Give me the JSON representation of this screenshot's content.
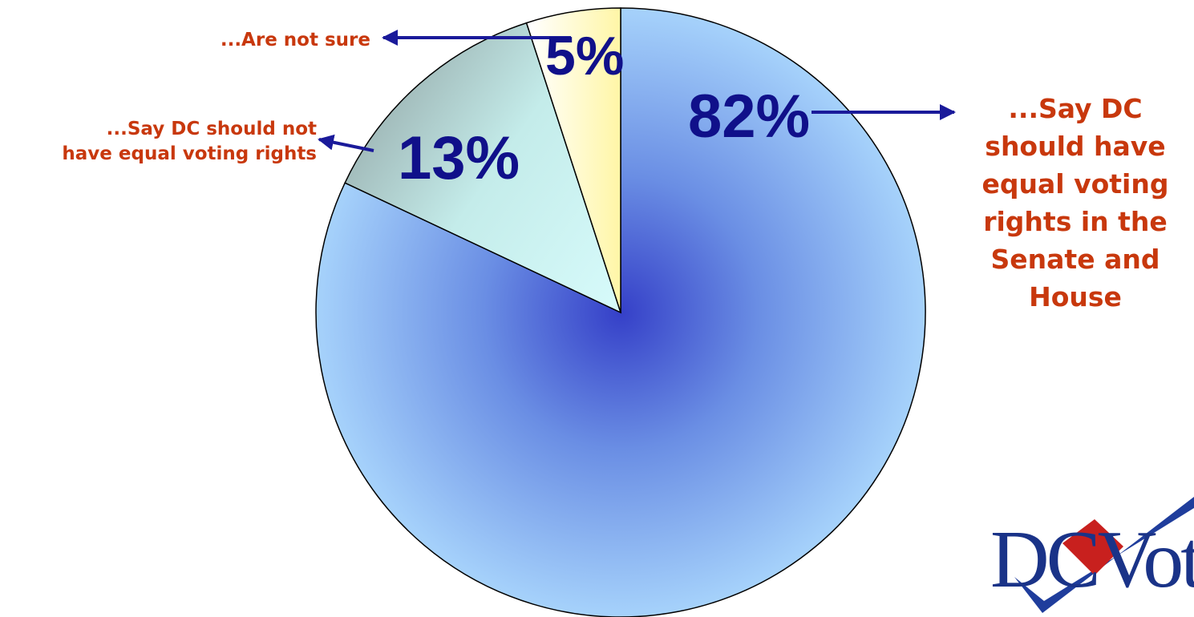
{
  "chart_data": {
    "type": "pie",
    "title": "",
    "slices": [
      {
        "label": "...Say DC should have equal voting rights in the Senate and House",
        "value": 82,
        "value_label": "82%",
        "color": "#4055cf"
      },
      {
        "label": "...Say DC should not have equal voting rights",
        "value": 13,
        "value_label": "13%",
        "color": "#cdf6f4"
      },
      {
        "label": "...Are not sure",
        "value": 5,
        "value_label": "5%",
        "color": "#fffcc8"
      }
    ],
    "start_angle_deg": 0,
    "direction": "clockwise",
    "label_color": "#10108a",
    "callout_color": "#c8380d",
    "arrow_color": "#1a1a9a"
  },
  "callouts": {
    "not_sure": "...Are not sure",
    "should_not": "...Say DC should not\nhave equal voting rights",
    "should": "...Say DC\nshould have\nequal voting\nrights in the\nSenate and\nHouse"
  },
  "logo": {
    "text": "DC Vote",
    "visible_text": "DCVot"
  }
}
